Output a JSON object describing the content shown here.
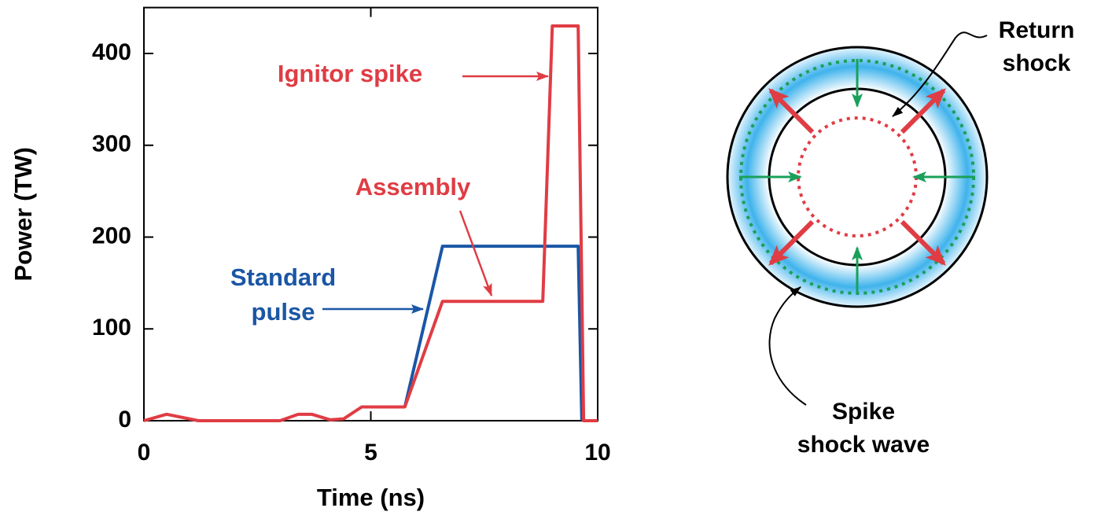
{
  "chart_data": {
    "type": "line",
    "xlabel": "Time (ns)",
    "ylabel": "Power (TW)",
    "xlim": [
      0,
      10
    ],
    "ylim": [
      0,
      450
    ],
    "xticks": [
      0,
      5,
      10
    ],
    "yticks": [
      0,
      100,
      200,
      300,
      400
    ],
    "series": [
      {
        "color": "#1a56a5",
        "x": [
          5.75,
          6.58,
          9.57,
          9.65
        ],
        "values": [
          15,
          190,
          190,
          0
        ]
      },
      {
        "color": "#e03c44",
        "x": [
          0,
          0.5,
          1.2,
          3,
          3.4,
          3.7,
          4.1,
          4.4,
          4.8,
          5.75,
          6.58,
          8.79,
          9.0,
          9.57,
          9.69,
          10
        ],
        "values": [
          0,
          7,
          0,
          0,
          7,
          7,
          1,
          2,
          15,
          15,
          130,
          130,
          430,
          430,
          0,
          0
        ]
      }
    ],
    "annotations": [
      {
        "lines": [
          "Standard",
          "pulse"
        ],
        "color": "#1a56a5"
      },
      {
        "lines": [
          "Assembly"
        ],
        "color": "#e03c44"
      },
      {
        "lines": [
          "Ignitor spike"
        ],
        "color": "#e03c44"
      }
    ]
  },
  "diagram": {
    "labels": [
      {
        "lines": [
          "Return",
          "shock"
        ]
      },
      {
        "lines": [
          "Spike",
          "shock wave"
        ]
      }
    ]
  }
}
